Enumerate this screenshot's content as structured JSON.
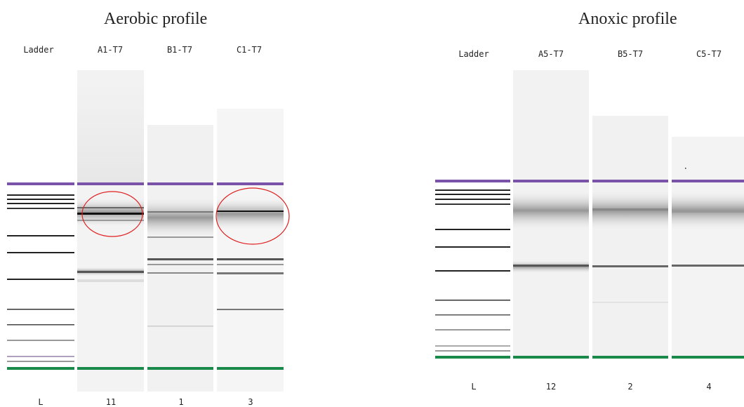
{
  "panels": [
    {
      "title": "Aerobic profile",
      "lanes": [
        {
          "label": "Ladder",
          "footer": "L"
        },
        {
          "label": "A1-T7",
          "footer": "11"
        },
        {
          "label": "B1-T7",
          "footer": "1"
        },
        {
          "label": "C1-T7",
          "footer": "3"
        }
      ]
    },
    {
      "title": "Anoxic profile",
      "lanes": [
        {
          "label": "Ladder",
          "footer": "L"
        },
        {
          "label": "A5-T7",
          "footer": "12"
        },
        {
          "label": "B5-T7",
          "footer": "2"
        },
        {
          "label": "C5-T7",
          "footer": "4"
        }
      ]
    }
  ],
  "colors": {
    "upper_marker": "#7a52a8",
    "lower_marker": "#1a8a4a",
    "band": "#222222",
    "highlight_circle": "#e02020"
  }
}
